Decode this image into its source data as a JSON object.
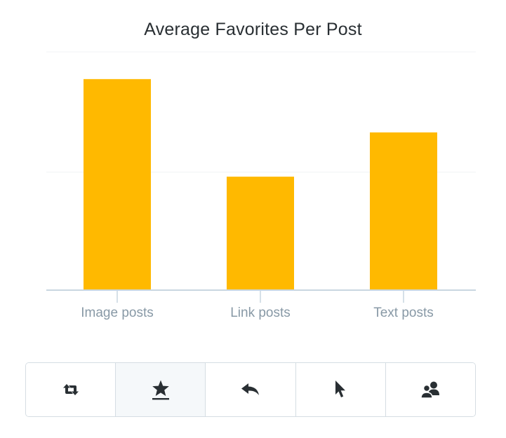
{
  "chart_data": {
    "type": "bar",
    "title": "Average Favorites Per Post",
    "categories": [
      "Image posts",
      "Link posts",
      "Text posts"
    ],
    "values": [
      9.3,
      5.0,
      6.95
    ],
    "ylim": [
      0,
      10.5
    ],
    "xlabel": "",
    "ylabel": "",
    "grid": true,
    "gridlines": [
      5.2,
      10.5
    ],
    "bar_color": "#ffb900",
    "axis_color": "#c9d6e0",
    "gridline_color": "#f0f3f5",
    "tick_label_color": "#8899a6"
  },
  "toolbar": {
    "active_index": 1,
    "buttons": [
      {
        "icon": "retweet-icon",
        "name": "retweets-button"
      },
      {
        "icon": "star-icon",
        "name": "favorites-button"
      },
      {
        "icon": "reply-icon",
        "name": "replies-button"
      },
      {
        "icon": "cursor-icon",
        "name": "clicks-button"
      },
      {
        "icon": "followers-icon",
        "name": "followers-button"
      }
    ],
    "icon_color": "#292f33",
    "border_color": "#d5dde3",
    "active_background": "#f5f8fa"
  }
}
